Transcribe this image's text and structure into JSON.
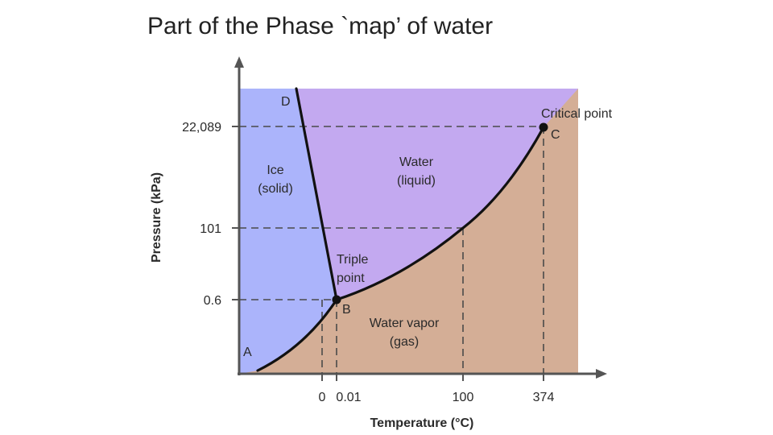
{
  "slide": {
    "title": "Part of the Phase `map’ of water"
  },
  "diagram": {
    "y_axis_label": "Pressure (kPa)",
    "x_axis_label": "Temperature (°C)",
    "y_ticks": [
      "22,089",
      "101",
      "0.6"
    ],
    "x_ticks": [
      "0",
      "0.01",
      "100",
      "374"
    ],
    "regions": {
      "solid": [
        "Ice",
        "(solid)"
      ],
      "liquid": [
        "Water",
        "(liquid)"
      ],
      "gas": [
        "Water vapor",
        "(gas)"
      ]
    },
    "points": {
      "A": "A",
      "B": "B",
      "C": "C",
      "D": "D",
      "triple_label": [
        "Triple",
        "point"
      ],
      "critical_label": "Critical point"
    },
    "colors": {
      "solid": "#abb4fb",
      "liquid": "#c3a9f0",
      "gas": "#d4ae96",
      "curve": "#111111"
    }
  }
}
